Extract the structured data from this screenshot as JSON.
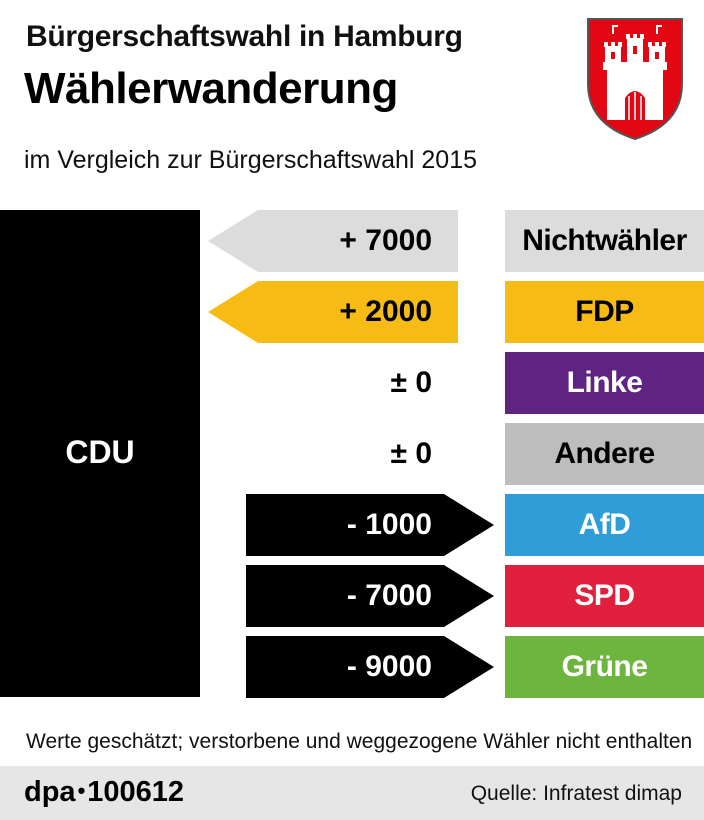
{
  "header": {
    "title": "Bürgerschaftswahl in Hamburg",
    "headline": "Wählerwanderung",
    "subtitle": "im Vergleich zur Bürgerschaftswahl 2015"
  },
  "crest": {
    "icon": "hamburg-coat-of-arms-icon",
    "color": "#e30613"
  },
  "chart_data": {
    "type": "bar",
    "title": "Wählerwanderung",
    "subject": "CDU",
    "categories": [
      "Nichtwähler",
      "FDP",
      "Linke",
      "Andere",
      "AfD",
      "SPD",
      "Grüne"
    ],
    "values": [
      7000,
      2000,
      0,
      0,
      -1000,
      -7000,
      -9000
    ],
    "value_labels": [
      "+ 7000",
      "+ 2000",
      "± 0",
      "± 0",
      "- 1000",
      "- 7000",
      "- 9000"
    ],
    "colors": [
      "#dcdcdc",
      "#f7bb16",
      "#5f2381",
      "#bdbdbd",
      "#2e9dd8",
      "#e0203d",
      "#6eb540"
    ],
    "label_text_colors": [
      "#000000",
      "#000000",
      "#ffffff",
      "#000000",
      "#ffffff",
      "#ffffff",
      "#ffffff"
    ],
    "gain_arrow_colors": [
      "#dcdcdc",
      "#f7bb16"
    ],
    "loss_arrow_color": "#000000"
  },
  "note": "Werte geschätzt; verstorbene und weggezogene Wähler nicht enthalten",
  "footer": {
    "agency": "dpa",
    "bullet": "•",
    "id": "100612",
    "source": "Quelle: Infratest dimap"
  }
}
